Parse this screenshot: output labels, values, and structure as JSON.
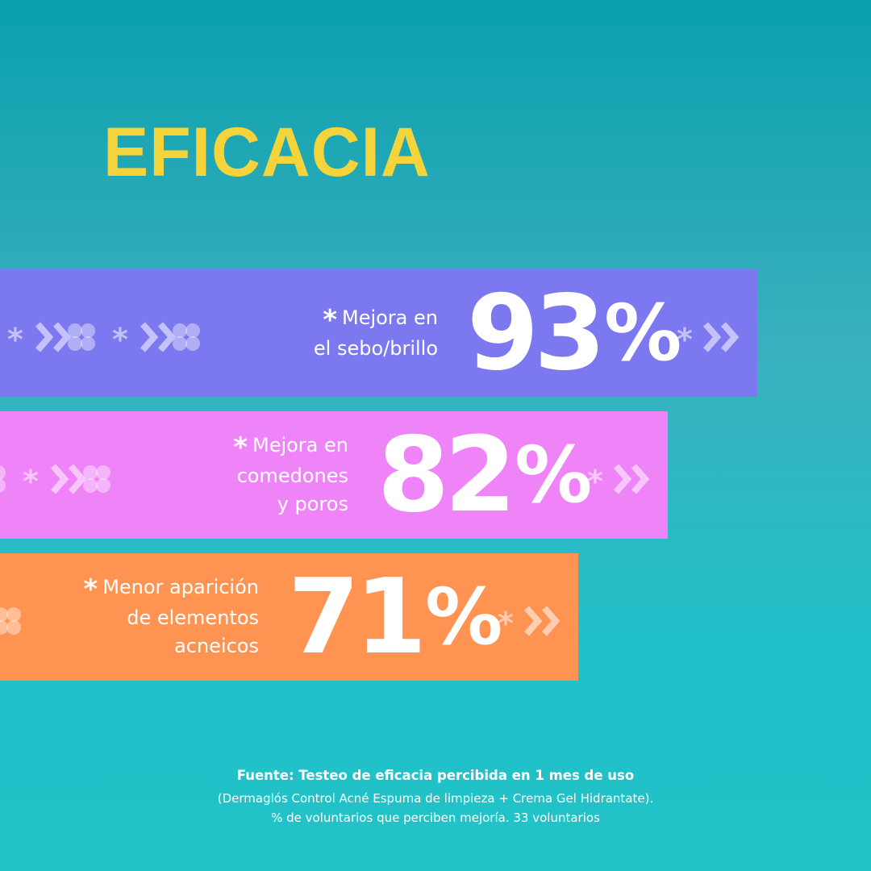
{
  "title": "EFICACIA",
  "colors": {
    "title": "#f5d33a",
    "band_sebo": "#7c78ef",
    "band_comedones": "#ee84f8",
    "band_acne": "#ff9352",
    "text": "#ffffff"
  },
  "chart_data": {
    "type": "bar",
    "orientation": "horizontal",
    "categories": [
      "Mejora en el sebo/brillo",
      "Mejora en comedones y poros",
      "Menor aparición de elementos acneicos"
    ],
    "values": [
      93,
      82,
      71
    ],
    "unit": "%",
    "bars": [
      {
        "label_lines": [
          "Mejora en",
          "el sebo/brillo"
        ],
        "value": "93",
        "unit": "%"
      },
      {
        "label_lines": [
          "Mejora en",
          "comedones",
          "y poros"
        ],
        "value": "82",
        "unit": "%"
      },
      {
        "label_lines": [
          "Menor aparición",
          "de elementos",
          "acneicos"
        ],
        "value": "71",
        "unit": "%"
      }
    ],
    "star": "*"
  },
  "footer": {
    "source": "Fuente: Testeo de eficacia percibida en 1 mes de uso",
    "line2": "(Dermaglós Control Acné Espuma de limpieza + Crema Gel Hidrantate).",
    "line3": "% de voluntarios que perciben mejoría. 33 voluntarios"
  }
}
